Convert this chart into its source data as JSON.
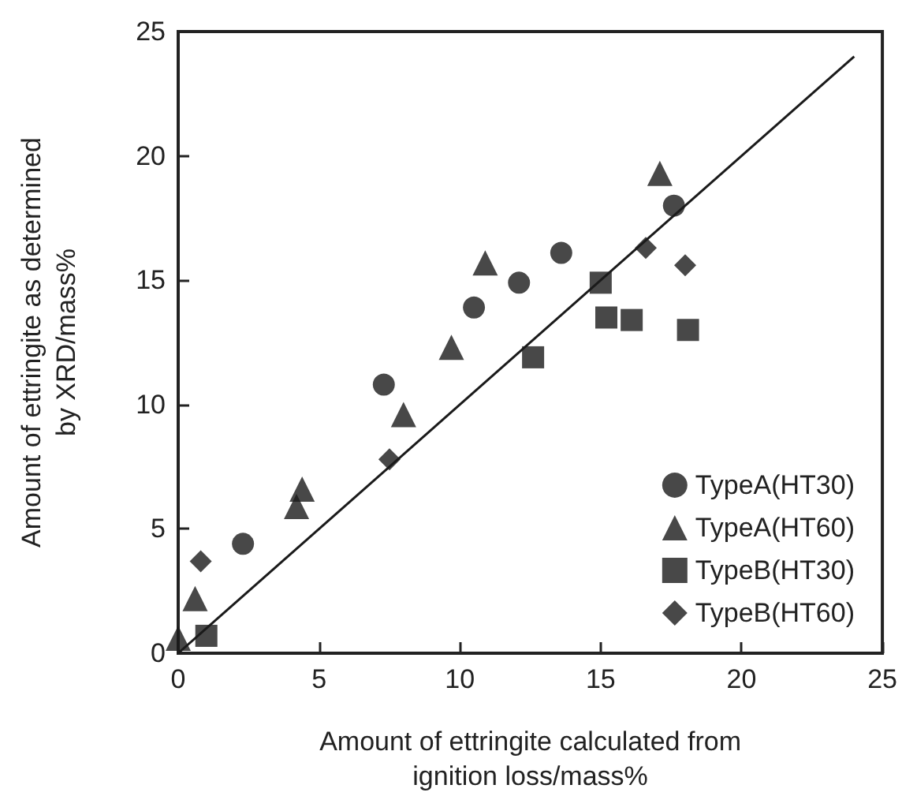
{
  "chart_data": {
    "type": "scatter",
    "xlabel": "Amount of ettringite calculated from\nignition loss/mass%",
    "ylabel": "Amount of ettringite as determined\nby XRD/mass%",
    "xlim": [
      0,
      25
    ],
    "ylim": [
      0,
      25
    ],
    "xticks": [
      0,
      5,
      10,
      15,
      20,
      25
    ],
    "yticks": [
      0,
      5,
      10,
      15,
      20,
      25
    ],
    "grid": false,
    "legend": "bottom right",
    "series": [
      {
        "name": "TypeA(HT30)",
        "color": "#1a1a1a",
        "marker": "circle",
        "x": [
          2.3,
          7.3,
          10.5,
          12.1,
          13.6,
          17.6
        ],
        "values": [
          4.4,
          10.8,
          13.9,
          14.9,
          16.1,
          18.0
        ]
      },
      {
        "name": "TypeA(HT60)",
        "color": "#1a1a1a",
        "marker": "triangle",
        "x": [
          0,
          0.6,
          4.2,
          4.4,
          8.0,
          9.7,
          10.9,
          17.1
        ],
        "values": [
          0.6,
          2.2,
          5.9,
          6.6,
          9.6,
          12.3,
          15.7,
          19.3
        ]
      },
      {
        "name": "TypeB(HT30)",
        "color": "#1a1a1a",
        "marker": "square",
        "x": [
          1.0,
          12.6,
          15.0,
          15.2,
          16.1,
          18.1
        ],
        "values": [
          0.7,
          11.9,
          14.9,
          13.5,
          13.4,
          13.0
        ]
      },
      {
        "name": "TypeB(HT60)",
        "color": "#1a1a1a",
        "marker": "diamond",
        "x": [
          0.8,
          7.5,
          16.6,
          18.0
        ],
        "values": [
          3.7,
          7.8,
          16.3,
          15.6
        ]
      },
      {
        "type": "line",
        "color": "#1a1a1a",
        "marker": "none",
        "x": [
          0,
          24
        ],
        "values": [
          0,
          24
        ]
      }
    ]
  }
}
